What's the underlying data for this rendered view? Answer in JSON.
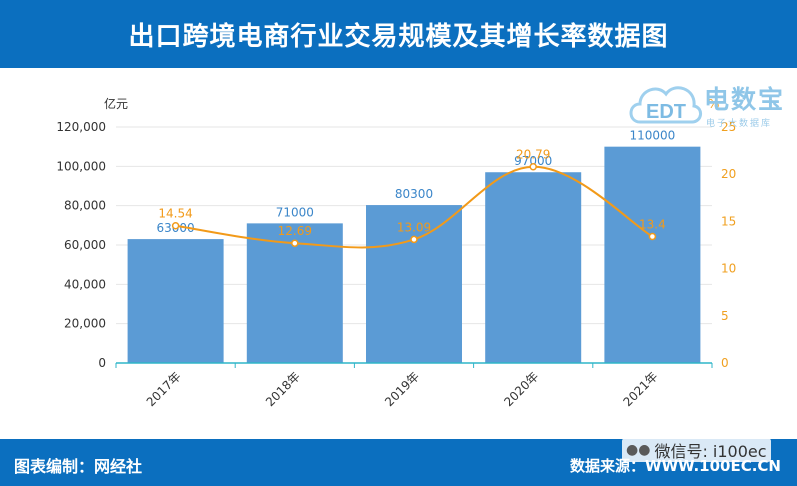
{
  "header": {
    "title": "出口跨境电商行业交易规模及其增长率数据图"
  },
  "logo": {
    "brand": "电数宝",
    "sub": "电子大数据库",
    "mark": "EDT"
  },
  "footer": {
    "left": "图表编制：网经社",
    "right": "数据来源：WWW.100EC.CN"
  },
  "watermark": {
    "text": "微信号: i100ec",
    "icon": "wechat-icon"
  },
  "colors": {
    "header": "#0b6fbf",
    "bar": "#5b9bd5",
    "line": "#f29a19"
  },
  "chart_data": {
    "type": "bar",
    "categories": [
      "2017年",
      "2018年",
      "2019年",
      "2020年",
      "2021年"
    ],
    "series": [
      {
        "name": "",
        "type": "bar",
        "axis": "left",
        "values": [
          63000,
          71000,
          80300,
          97000,
          110000
        ]
      },
      {
        "name": "",
        "type": "line",
        "axis": "right",
        "values": [
          14.54,
          12.69,
          13.09,
          20.79,
          13.4
        ]
      }
    ],
    "y_left": {
      "unit": "亿元",
      "ylim": [
        0,
        120000
      ],
      "ticks": [
        "0",
        "20,000",
        "40,000",
        "60,000",
        "80,000",
        "100,000",
        "120,000"
      ]
    },
    "y_right": {
      "unit": "%",
      "ylim": [
        0,
        25
      ],
      "ticks": [
        "0",
        "5",
        "10",
        "15",
        "20",
        "25"
      ]
    },
    "grid": true,
    "legend": "none"
  }
}
